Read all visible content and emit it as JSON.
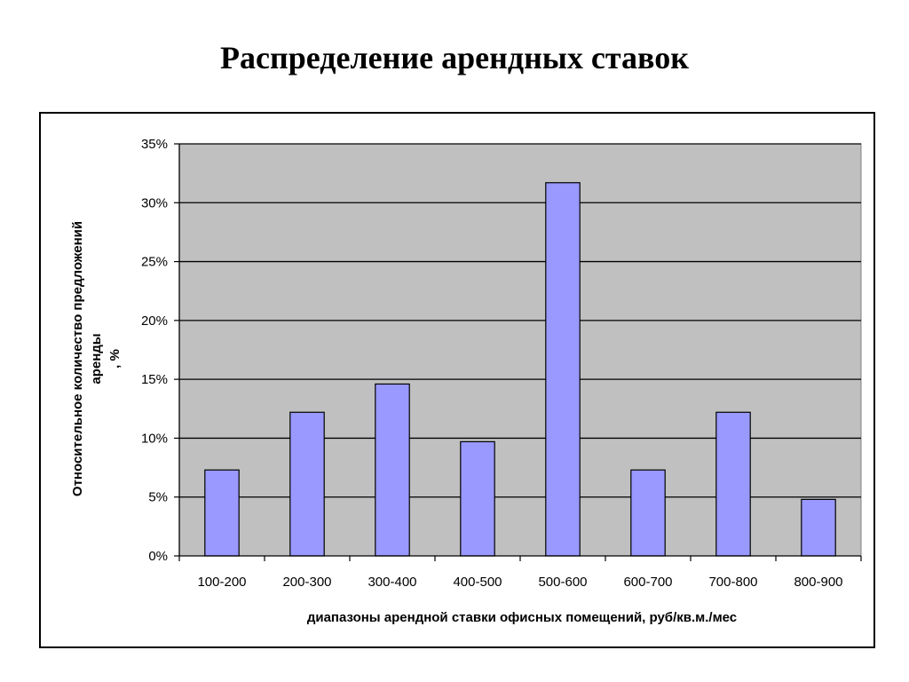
{
  "slide": {
    "title": "Распределение арендных ставок"
  },
  "chart_data": {
    "type": "bar",
    "title": "",
    "categories": [
      "100-200",
      "200-300",
      "300-400",
      "400-500",
      "500-600",
      "600-700",
      "700-800",
      "800-900"
    ],
    "values": [
      7.3,
      12.2,
      14.6,
      9.7,
      31.7,
      7.3,
      12.2,
      4.8
    ],
    "xlabel": "диапазоны арендной ставки офисных помещений, руб/кв.м./мес",
    "ylabel": {
      "line1": "Относительное количество предложений",
      "line2": "аренды",
      "line3": ", %"
    },
    "ylim": [
      0,
      35
    ],
    "yticks": [
      0,
      5,
      10,
      15,
      20,
      25,
      30,
      35
    ],
    "ytick_labels": [
      "0%",
      "5%",
      "10%",
      "15%",
      "20%",
      "25%",
      "30%",
      "35%"
    ],
    "grid": true,
    "legend": "none",
    "colors": {
      "bar": "#9999FF",
      "plot_area": "#C0C0C0",
      "gridline": "#000000"
    }
  }
}
